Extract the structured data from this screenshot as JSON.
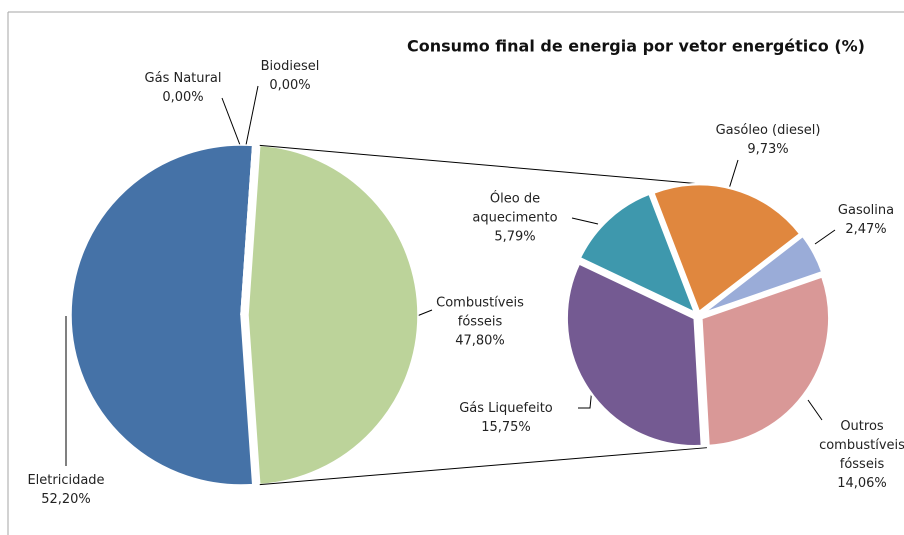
{
  "chart_data": {
    "type": "pie",
    "title": "Consumo final de energia por vetor energético (%)",
    "categories": [
      "Eletricidade",
      "Gás Natural",
      "Biodiesel",
      "Combustíveis\nfósseis"
    ],
    "values": [
      52.2,
      0,
      0,
      47.8
    ],
    "value_labels": [
      "52,20%",
      "0,00%",
      "0,00%",
      "47,80%"
    ],
    "colors": [
      "#4572a7",
      "#aa4643",
      "#80699b",
      "#bcd39a"
    ],
    "breakdown": {
      "categories": [
        "Gasóleo (diesel)",
        "Gasolina",
        "Outros\ncombustíveis\nfósseis",
        "Gás Liquefeito",
        "Óleo de\naquecimento"
      ],
      "values": [
        9.73,
        2.47,
        14.06,
        15.75,
        5.79
      ],
      "value_labels": [
        "9,73%",
        "2,47%",
        "14,06%",
        "15,75%",
        "5,79%"
      ],
      "colors": [
        "#e0873e",
        "#9aacd8",
        "#d99897",
        "#745a92",
        "#3e98ad"
      ]
    }
  }
}
